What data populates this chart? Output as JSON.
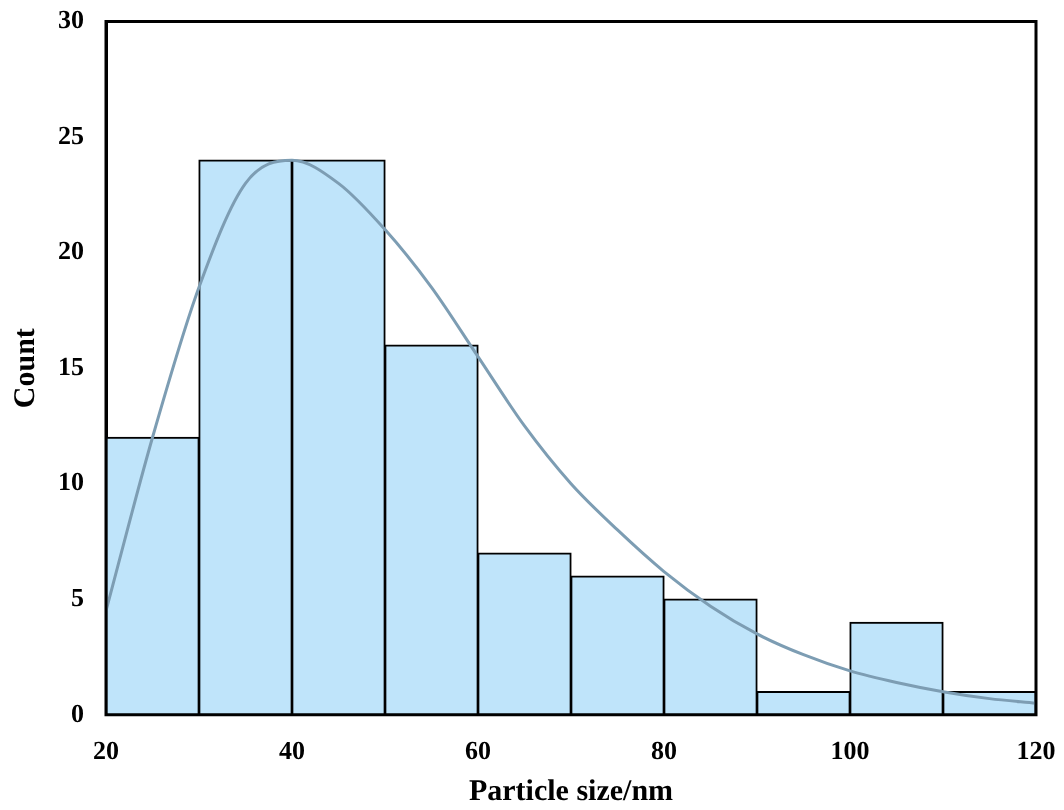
{
  "chart_data": {
    "type": "histogram",
    "xlabel": "Particle size/nm",
    "ylabel": "Count",
    "bins": [
      20,
      30,
      40,
      50,
      60,
      70,
      80,
      90,
      100,
      110,
      120
    ],
    "values": [
      12,
      24,
      24,
      16,
      7,
      6,
      5,
      1,
      4,
      1
    ],
    "color": "#bfe4fa",
    "series": [
      {
        "type": "line",
        "color": "#7d9db3",
        "x": [
          20,
          25,
          30,
          35,
          40,
          45,
          50,
          55,
          60,
          65,
          70,
          75,
          80,
          85,
          90,
          95,
          100,
          105,
          110,
          115,
          120
        ],
        "values": [
          4.5,
          12,
          18.5,
          23,
          24,
          23,
          21,
          18.5,
          15.5,
          12.5,
          10,
          8,
          6.2,
          4.7,
          3.5,
          2.6,
          1.9,
          1.4,
          1,
          0.7,
          0.5
        ]
      }
    ],
    "xlim": [
      20,
      120
    ],
    "xticks": [
      20,
      40,
      60,
      80,
      100,
      120
    ],
    "ylim": [
      0,
      30
    ],
    "yticks": [
      0,
      5,
      10,
      15,
      20,
      25,
      30
    ],
    "grid": false,
    "legend": false
  }
}
